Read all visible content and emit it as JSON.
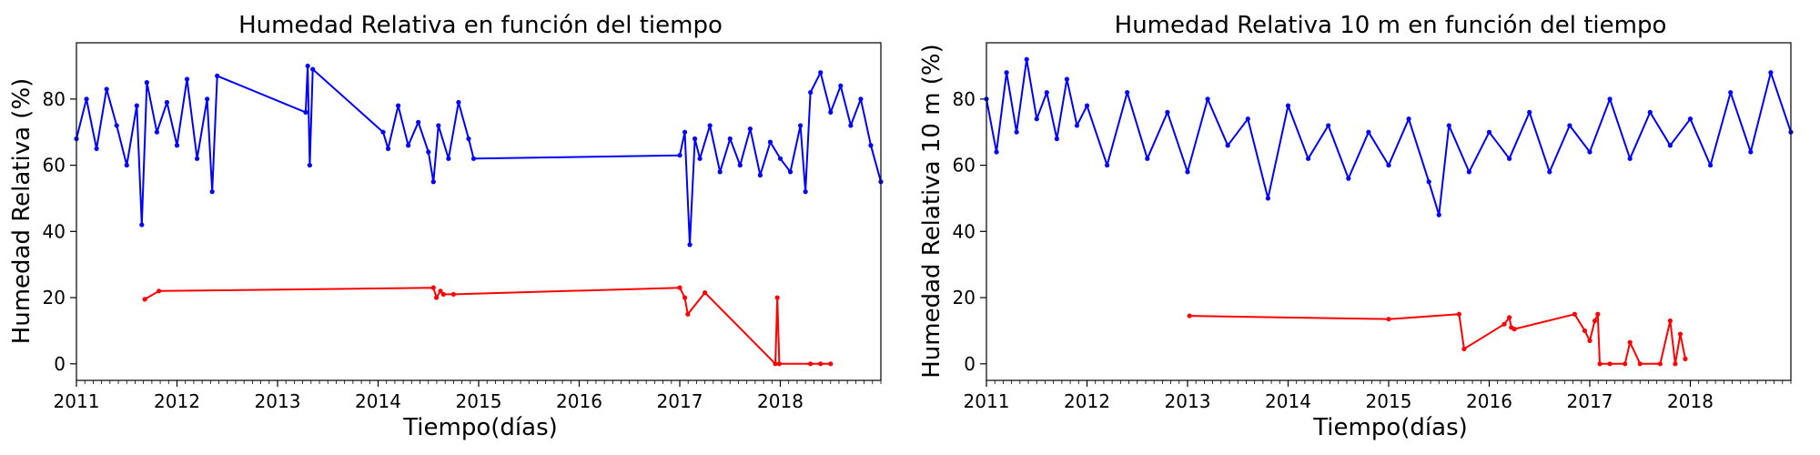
{
  "colors": {
    "series_main": "#0000ff",
    "series_low": "#ff0000",
    "axes": "#000000"
  },
  "chart_data": [
    {
      "type": "line",
      "title": "Humedad Relativa en función del tiempo",
      "xlabel": "Tiempo(días)",
      "ylabel": "Humedad Relativa (%)",
      "x_ticks": [
        "2011",
        "2012",
        "2013",
        "2014",
        "2015",
        "2016",
        "2017",
        "2018"
      ],
      "y_ticks": [
        "0",
        "20",
        "40",
        "60",
        "80"
      ],
      "xlim": [
        2011.0,
        2019.0
      ],
      "ylim": [
        -5,
        97
      ],
      "grid": false,
      "legend": "none",
      "series": [
        {
          "color": "#0000ff",
          "marker": "dot",
          "x": [
            2011.0,
            2011.1,
            2011.2,
            2011.3,
            2011.4,
            2011.5,
            2011.6,
            2011.65,
            2011.7,
            2011.8,
            2011.9,
            2012.0,
            2012.1,
            2012.2,
            2012.3,
            2012.35,
            2012.4,
            2013.28,
            2013.3,
            2013.32,
            2013.35,
            2014.05,
            2014.1,
            2014.2,
            2014.3,
            2014.4,
            2014.5,
            2014.55,
            2014.6,
            2014.7,
            2014.8,
            2014.9,
            2014.95,
            2017.0,
            2017.05,
            2017.1,
            2017.15,
            2017.2,
            2017.3,
            2017.4,
            2017.5,
            2017.6,
            2017.7,
            2017.8,
            2017.9,
            2018.0,
            2018.1,
            2018.2,
            2018.25,
            2018.3,
            2018.4,
            2018.5,
            2018.6,
            2018.7,
            2018.8,
            2018.9,
            2019.0
          ],
          "y": [
            68,
            80,
            65,
            83,
            72,
            60,
            78,
            42,
            85,
            70,
            79,
            66,
            86,
            62,
            80,
            52,
            87,
            76,
            90,
            60,
            89,
            70,
            65,
            78,
            66,
            73,
            64,
            55,
            72,
            62,
            79,
            68,
            62,
            63,
            70,
            36,
            68,
            62,
            72,
            58,
            68,
            60,
            71,
            57,
            67,
            62,
            58,
            72,
            52,
            82,
            88,
            76,
            84,
            72,
            80,
            66,
            55
          ]
        },
        {
          "color": "#ff0000",
          "marker": "dot",
          "x": [
            2011.68,
            2011.82,
            2014.55,
            2014.58,
            2014.62,
            2014.65,
            2014.75,
            2017.0,
            2017.05,
            2017.08,
            2017.25,
            2017.95,
            2017.97,
            2017.99,
            2018.3,
            2018.4,
            2018.5
          ],
          "y": [
            19.5,
            22,
            23,
            20,
            22,
            21,
            21,
            23,
            20,
            15,
            21.5,
            0,
            20,
            0,
            0,
            0,
            0
          ]
        }
      ]
    },
    {
      "type": "line",
      "title": "Humedad Relativa 10 m en función del tiempo",
      "xlabel": "Tiempo(días)",
      "ylabel": "Humedad Relativa 10 m (%)",
      "x_ticks": [
        "2011",
        "2012",
        "2013",
        "2014",
        "2015",
        "2016",
        "2017",
        "2018"
      ],
      "y_ticks": [
        "0",
        "20",
        "40",
        "60",
        "80"
      ],
      "xlim": [
        2011.0,
        2019.0
      ],
      "ylim": [
        -5,
        97
      ],
      "grid": false,
      "legend": "none",
      "series": [
        {
          "color": "#0000ff",
          "marker": "dot",
          "x": [
            2011.0,
            2011.1,
            2011.2,
            2011.3,
            2011.4,
            2011.5,
            2011.6,
            2011.7,
            2011.8,
            2011.9,
            2012.0,
            2012.2,
            2012.4,
            2012.6,
            2012.8,
            2013.0,
            2013.2,
            2013.4,
            2013.6,
            2013.8,
            2014.0,
            2014.2,
            2014.4,
            2014.6,
            2014.8,
            2015.0,
            2015.2,
            2015.4,
            2015.5,
            2015.6,
            2015.8,
            2016.0,
            2016.2,
            2016.4,
            2016.6,
            2016.8,
            2017.0,
            2017.2,
            2017.4,
            2017.6,
            2017.8,
            2018.0,
            2018.2,
            2018.4,
            2018.6,
            2018.8,
            2019.0
          ],
          "y": [
            80,
            64,
            88,
            70,
            92,
            74,
            82,
            68,
            86,
            72,
            78,
            60,
            82,
            62,
            76,
            58,
            80,
            66,
            74,
            50,
            78,
            62,
            72,
            56,
            70,
            60,
            74,
            55,
            45,
            72,
            58,
            70,
            62,
            76,
            58,
            72,
            64,
            80,
            62,
            76,
            66,
            74,
            60,
            82,
            64,
            88,
            70
          ]
        },
        {
          "color": "#ff0000",
          "marker": "dot",
          "x": [
            2013.02,
            2015.0,
            2015.7,
            2015.75,
            2016.15,
            2016.2,
            2016.22,
            2016.25,
            2016.85,
            2016.95,
            2017.0,
            2017.05,
            2017.08,
            2017.1,
            2017.2,
            2017.35,
            2017.4,
            2017.5,
            2017.7,
            2017.8,
            2017.85,
            2017.9,
            2017.95
          ],
          "y": [
            14.5,
            13.5,
            15,
            4.5,
            12,
            14,
            11,
            10.5,
            15,
            10,
            7,
            13,
            15,
            0,
            0,
            0,
            6.5,
            0,
            0,
            13,
            0,
            9,
            1.5
          ]
        }
      ]
    }
  ]
}
